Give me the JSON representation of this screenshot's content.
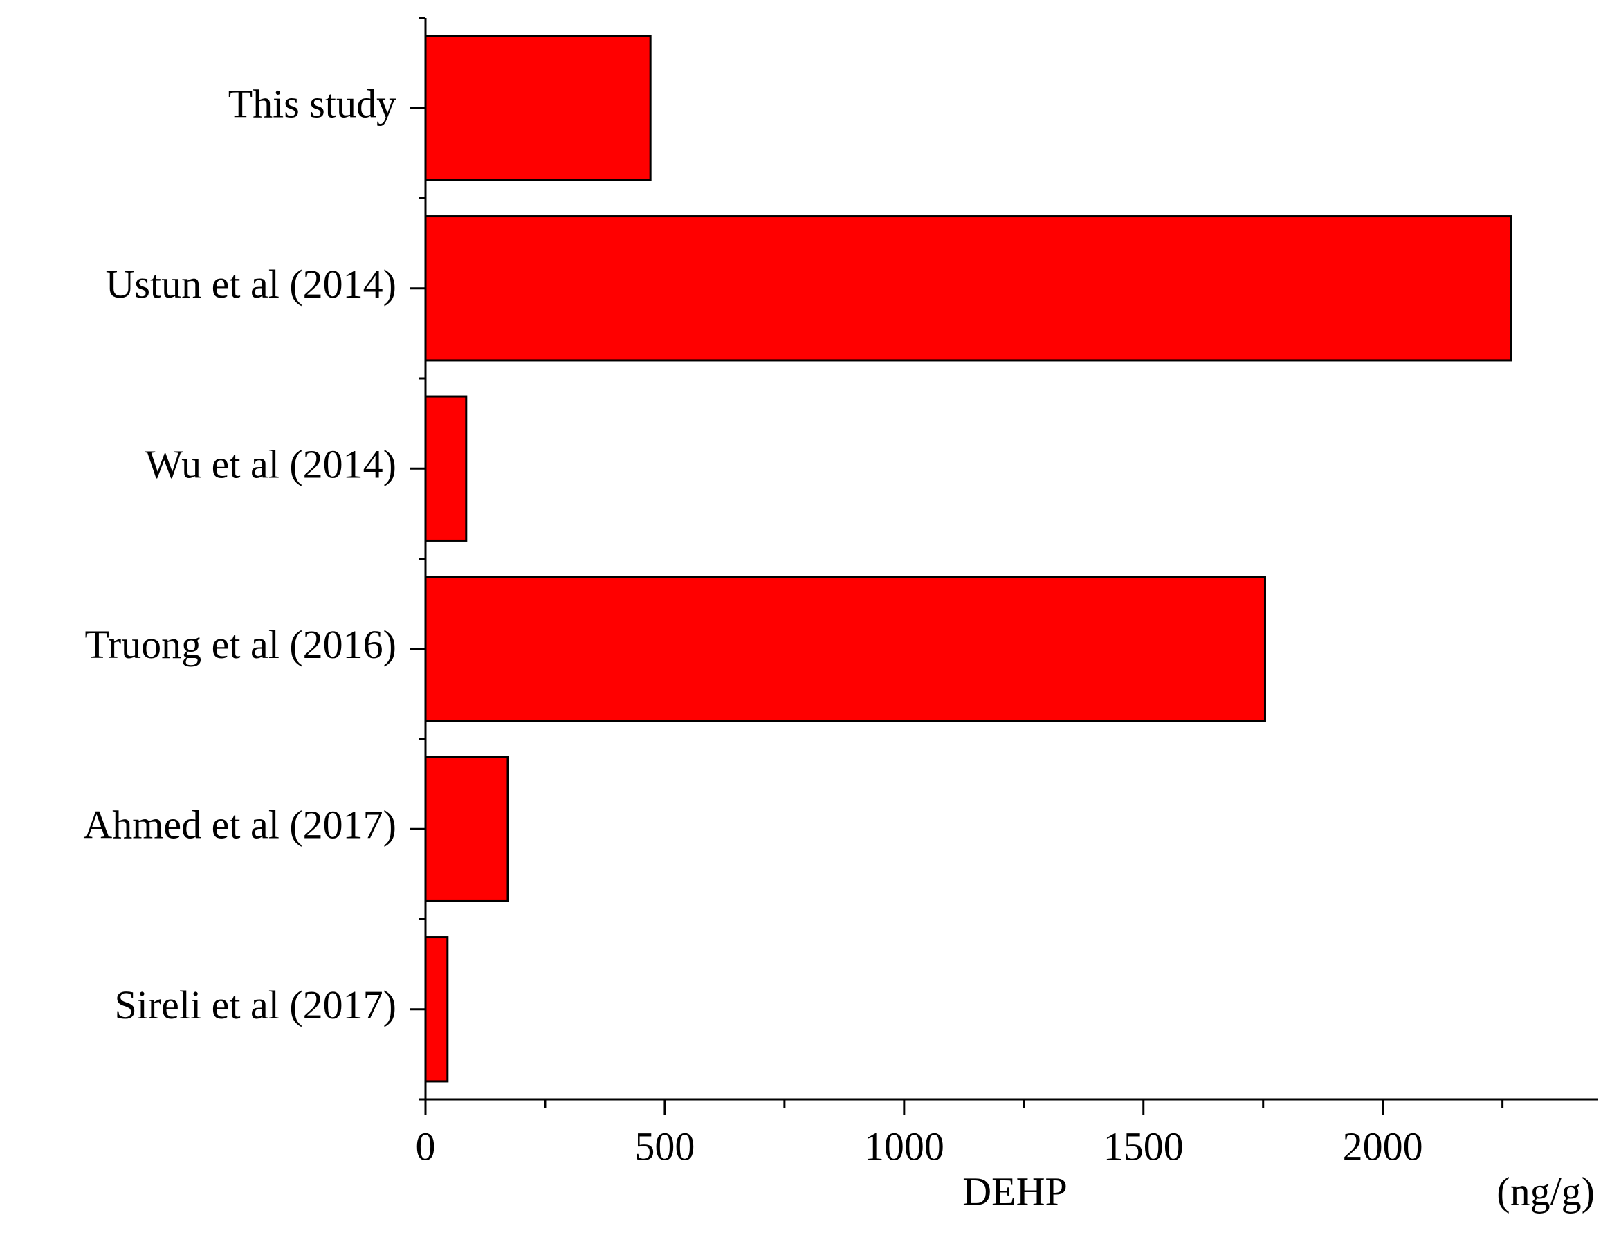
{
  "chart_data": {
    "type": "bar",
    "orientation": "horizontal",
    "categories": [
      "This study",
      "Ustun et al (2014)",
      "Wu et al (2014)",
      "Truong et al (2016)",
      "Ahmed et al (2017)",
      "Sireli et al (2017)"
    ],
    "values": [
      470,
      2268,
      85,
      1754,
      172,
      46
    ],
    "color": "#ff0000",
    "xlim": [
      0,
      2450
    ],
    "xticks": [
      0,
      500,
      1000,
      1500,
      2000
    ],
    "xminorticks": [
      250,
      750,
      1250,
      1750,
      2250
    ],
    "x_label": "DEHP",
    "x_unit": "(ng/g)",
    "grid": false
  }
}
